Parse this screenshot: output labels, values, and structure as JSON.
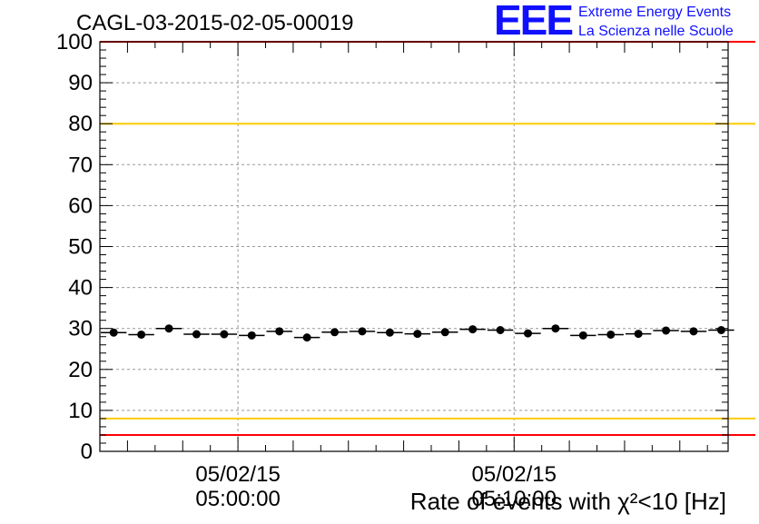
{
  "header": {
    "title": "CAGL-03-2015-02-05-00019",
    "logo_mark": "EEE",
    "logo_line1": "Extreme Energy Events",
    "logo_line2": "La Scienza nelle Scuole"
  },
  "chart_data": {
    "type": "scatter",
    "title": "CAGL-03-2015-02-05-00019",
    "xlabel": "Rate of events with χ²<10 [Hz]",
    "ylabel": "",
    "ylim": [
      0,
      100
    ],
    "yticks": [
      "0",
      "10",
      "20",
      "30",
      "40",
      "50",
      "60",
      "70",
      "80",
      "90",
      "100"
    ],
    "xticks": [
      {
        "date": "05/02/15",
        "time": "05:00:00"
      },
      {
        "date": "05/02/15",
        "time": "05:10:00"
      }
    ],
    "grid": true,
    "reference_lines": [
      {
        "value": 100,
        "color": "#ff0000"
      },
      {
        "value": 80,
        "color": "#ffcc00"
      },
      {
        "value": 8,
        "color": "#ffcc00"
      },
      {
        "value": 4,
        "color": "#ff0000"
      }
    ],
    "series": [
      {
        "marker_color": "#000000",
        "x": [
          "04:55:30",
          "04:56:30",
          "04:57:30",
          "04:58:30",
          "04:59:30",
          "05:00:30",
          "05:01:30",
          "05:02:30",
          "05:03:30",
          "05:04:30",
          "05:05:30",
          "05:06:30",
          "05:07:30",
          "05:08:30",
          "05:09:30",
          "05:10:30",
          "05:11:30",
          "05:12:30",
          "05:13:30",
          "05:14:30",
          "05:15:30",
          "05:16:30",
          "05:17:30"
        ],
        "values": [
          29.0,
          28.5,
          30.0,
          28.6,
          28.6,
          28.3,
          29.3,
          27.8,
          29.1,
          29.3,
          29.0,
          28.7,
          29.1,
          29.8,
          29.6,
          28.8,
          30.0,
          28.3,
          28.5,
          28.7,
          29.5,
          29.3,
          29.6
        ]
      }
    ]
  }
}
